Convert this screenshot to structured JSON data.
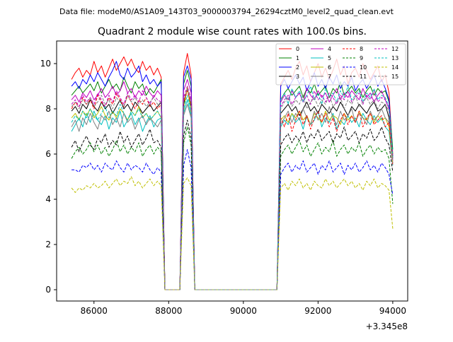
{
  "header": {
    "data_file": "Data file: modeM0/AS1A09_143T03_9000003794_26294cztM0_level2_quad_clean.evt"
  },
  "chart_data": {
    "type": "line",
    "title": "Quadrant 2 module wise count rates with 100.0s bins.",
    "xlabel": "",
    "ylabel": "",
    "x_offset_label": "+3.345e8",
    "xlim": [
      85000,
      94400
    ],
    "ylim": [
      -0.5,
      11.0
    ],
    "x_ticks": [
      86000,
      88000,
      90000,
      92000,
      94000
    ],
    "x_tick_labels": [
      "86000",
      "88000",
      "90000",
      "92000",
      "94000"
    ],
    "y_ticks": [
      0,
      2,
      4,
      6,
      8,
      10
    ],
    "y_tick_labels": [
      "0",
      "2",
      "4",
      "6",
      "8",
      "10"
    ],
    "grid": false,
    "legend_position": "top-right",
    "x_segments": {
      "seg1": [
        85400,
        85500,
        85600,
        85700,
        85800,
        85900,
        86000,
        86100,
        86200,
        86300,
        86400,
        86500,
        86600,
        86700,
        86800,
        86900,
        87000,
        87100,
        87200,
        87300,
        87400,
        87500,
        87600,
        87700,
        87800
      ],
      "gap1": [
        87900,
        88000,
        88100,
        88200,
        88300
      ],
      "seg2": [
        88400,
        88500,
        88600
      ],
      "gap2": [
        88700,
        88800,
        88900,
        89000,
        89100,
        89200,
        89300,
        89400,
        89500,
        89600,
        89700,
        89800,
        89900,
        90000,
        90100,
        90200,
        90300,
        90400,
        90500,
        90600,
        90700,
        90800,
        90900
      ],
      "seg3": [
        91000,
        91100,
        91200,
        91300,
        91400,
        91500,
        91600,
        91700,
        91800,
        91900,
        92000,
        92100,
        92200,
        92300,
        92400,
        92500,
        92600,
        92700,
        92800,
        92900,
        93000,
        93100,
        93200,
        93300,
        93400,
        93500,
        93600,
        93700,
        93800,
        93900,
        94000
      ]
    },
    "series": [
      {
        "name": "0",
        "color": "#ff0000",
        "dashed": false,
        "seg1": [
          9.3,
          9.6,
          9.8,
          9.4,
          9.7,
          9.5,
          10.1,
          9.6,
          9.9,
          9.4,
          9.8,
          10.2,
          9.7,
          10.0,
          10.3,
          9.9,
          10.2,
          9.8,
          9.6,
          10.1,
          9.7,
          9.9,
          9.5,
          9.8,
          9.4
        ],
        "seg2": [
          9.6,
          10.45,
          9.5
        ],
        "seg3": [
          9.1,
          9.4,
          9.7,
          9.3,
          9.8,
          10.1,
          9.5,
          9.9,
          9.2,
          9.6,
          10.0,
          9.4,
          9.8,
          9.3,
          9.7,
          10.2,
          9.5,
          9.9,
          9.1,
          9.6,
          9.8,
          9.4,
          10.0,
          9.7,
          9.3,
          9.6,
          9.9,
          9.2,
          9.5,
          8.7,
          6.0
        ]
      },
      {
        "name": "1",
        "color": "#008000",
        "dashed": false,
        "seg1": [
          8.6,
          8.8,
          9.0,
          8.7,
          8.9,
          9.1,
          8.8,
          9.2,
          8.7,
          9.0,
          9.3,
          8.9,
          9.1,
          8.8,
          9.4,
          9.0,
          8.7,
          9.2,
          8.9,
          9.1,
          8.6,
          8.9,
          8.7,
          9.0,
          9.3
        ],
        "seg2": [
          9.1,
          9.7,
          9.0
        ],
        "seg3": [
          8.4,
          8.7,
          8.9,
          8.6,
          8.8,
          9.0,
          8.5,
          8.9,
          8.7,
          9.1,
          8.6,
          8.8,
          9.0,
          8.5,
          8.9,
          8.7,
          9.2,
          8.6,
          8.8,
          9.0,
          8.7,
          8.9,
          8.5,
          8.8,
          9.0,
          8.6,
          8.9,
          8.7,
          8.8,
          8.3,
          6.2
        ]
      },
      {
        "name": "2",
        "color": "#0000ff",
        "dashed": false,
        "seg1": [
          9.0,
          9.2,
          8.9,
          9.3,
          9.1,
          9.5,
          9.2,
          9.6,
          9.3,
          9.0,
          9.4,
          9.7,
          10.1,
          9.5,
          9.3,
          9.8,
          9.4,
          9.6,
          9.9,
          9.2,
          9.5,
          9.1,
          9.3,
          9.0,
          9.2
        ],
        "seg2": [
          9.4,
          9.9,
          9.3
        ],
        "seg3": [
          9.0,
          9.3,
          8.9,
          9.2,
          9.5,
          9.1,
          9.4,
          8.8,
          9.2,
          9.6,
          9.0,
          9.3,
          8.9,
          9.4,
          9.1,
          9.5,
          8.9,
          9.2,
          9.0,
          9.4,
          8.8,
          9.1,
          9.3,
          8.9,
          9.2,
          9.5,
          9.0,
          9.3,
          8.9,
          8.4,
          5.8
        ]
      },
      {
        "name": "3",
        "color": "#000000",
        "dashed": false,
        "seg1": [
          7.9,
          8.1,
          7.8,
          8.2,
          8.0,
          8.4,
          8.1,
          7.9,
          8.3,
          8.0,
          8.2,
          7.8,
          8.1,
          8.4,
          8.0,
          8.2,
          7.9,
          8.3,
          8.1,
          7.8,
          8.0,
          8.2,
          7.9,
          8.1,
          8.3
        ],
        "seg2": [
          8.2,
          8.9,
          8.1
        ],
        "seg3": [
          7.8,
          8.0,
          8.2,
          7.9,
          8.1,
          7.7,
          8.0,
          8.3,
          7.9,
          8.1,
          7.8,
          8.2,
          8.0,
          7.8,
          8.1,
          7.9,
          8.3,
          8.0,
          7.7,
          8.1,
          7.9,
          8.2,
          8.0,
          7.8,
          8.1,
          8.3,
          7.9,
          8.0,
          8.2,
          7.6,
          5.9
        ]
      },
      {
        "name": "4",
        "color": "#bf00bf",
        "dashed": false,
        "seg1": [
          8.4,
          8.6,
          8.3,
          8.7,
          8.5,
          8.8,
          8.4,
          8.6,
          8.9,
          8.5,
          8.7,
          9.0,
          8.6,
          8.8,
          9.2,
          8.7,
          8.9,
          8.5,
          8.8,
          8.6,
          9.0,
          8.7,
          8.5,
          8.8,
          8.6
        ],
        "seg2": [
          8.8,
          9.3,
          8.7
        ],
        "seg3": [
          8.3,
          8.6,
          8.4,
          8.8,
          8.5,
          8.7,
          8.3,
          8.9,
          8.6,
          8.4,
          8.8,
          8.5,
          8.7,
          8.3,
          8.6,
          8.9,
          8.4,
          8.7,
          8.5,
          8.8,
          8.6,
          8.4,
          8.9,
          8.5,
          8.7,
          8.3,
          8.6,
          8.8,
          8.4,
          8.0,
          5.7
        ]
      },
      {
        "name": "5",
        "color": "#00bfbf",
        "dashed": false,
        "seg1": [
          7.0,
          7.3,
          7.6,
          7.2,
          7.8,
          7.4,
          7.9,
          7.5,
          7.3,
          7.7,
          7.1,
          7.6,
          7.4,
          7.9,
          7.2,
          7.5,
          7.8,
          7.3,
          7.6,
          7.0,
          7.4,
          7.7,
          7.2,
          7.5,
          7.6
        ],
        "seg2": [
          7.8,
          8.4,
          7.7
        ],
        "seg3": [
          7.2,
          7.5,
          7.3,
          7.8,
          7.4,
          7.6,
          7.1,
          7.7,
          7.3,
          7.5,
          7.9,
          7.2,
          7.6,
          7.4,
          7.8,
          7.1,
          7.5,
          7.3,
          7.7,
          7.4,
          7.6,
          7.2,
          7.8,
          7.5,
          7.3,
          7.7,
          7.4,
          7.6,
          7.2,
          7.0,
          5.5
        ]
      },
      {
        "name": "6",
        "color": "#bfbf00",
        "dashed": false,
        "seg1": [
          7.6,
          7.8,
          7.5,
          7.9,
          7.7,
          8.0,
          7.6,
          7.8,
          8.1,
          7.7,
          7.5,
          7.9,
          7.6,
          8.0,
          7.8,
          7.5,
          7.9,
          7.7,
          8.1,
          7.6,
          7.8,
          7.5,
          7.7,
          7.9,
          7.6
        ],
        "seg2": [
          7.9,
          9.0,
          7.8
        ],
        "seg3": [
          7.5,
          7.7,
          7.4,
          7.8,
          7.6,
          7.9,
          7.5,
          7.7,
          7.3,
          7.8,
          7.6,
          7.4,
          7.9,
          7.5,
          7.7,
          7.6,
          7.3,
          7.8,
          7.5,
          7.7,
          7.4,
          7.9,
          7.6,
          7.5,
          7.8,
          7.4,
          7.7,
          7.5,
          7.6,
          7.2,
          5.6
        ]
      },
      {
        "name": "7",
        "color": "#808080",
        "dashed": false,
        "seg1": [
          7.2,
          7.5,
          7.0,
          7.6,
          7.3,
          7.8,
          7.4,
          7.1,
          7.7,
          7.5,
          7.9,
          7.3,
          7.6,
          7.2,
          7.8,
          7.4,
          7.6,
          7.1,
          7.5,
          7.7,
          7.3,
          7.6,
          7.4,
          7.2,
          7.5
        ],
        "seg2": [
          7.7,
          8.2,
          7.6
        ],
        "seg3": [
          7.3,
          7.6,
          7.9,
          7.4,
          7.8,
          7.5,
          8.0,
          7.6,
          7.3,
          7.9,
          7.5,
          7.8,
          7.4,
          8.1,
          7.6,
          7.3,
          7.9,
          7.5,
          7.7,
          8.0,
          7.4,
          7.8,
          7.6,
          7.3,
          7.9,
          7.5,
          7.7,
          8.0,
          7.6,
          7.4,
          5.8
        ]
      },
      {
        "name": "8",
        "color": "#ff0000",
        "dashed": true,
        "seg1": [
          8.0,
          8.3,
          8.1,
          8.5,
          8.2,
          8.4,
          8.0,
          8.6,
          8.3,
          8.1,
          8.5,
          8.2,
          8.7,
          8.4,
          8.1,
          8.6,
          8.3,
          8.0,
          8.4,
          8.2,
          8.5,
          8.1,
          8.3,
          8.0,
          8.2
        ],
        "seg2": [
          8.3,
          8.8,
          8.2
        ],
        "seg3": [
          7.6,
          7.2,
          7.8,
          7.0,
          7.5,
          7.9,
          7.3,
          7.7,
          7.1,
          7.6,
          7.9,
          7.4,
          7.8,
          7.2,
          7.6,
          7.0,
          7.5,
          7.8,
          7.3,
          7.7,
          7.4,
          7.9,
          7.2,
          7.6,
          7.8,
          7.3,
          7.5,
          7.7,
          7.2,
          7.4,
          5.5
        ]
      },
      {
        "name": "9",
        "color": "#008000",
        "dashed": true,
        "seg1": [
          5.8,
          6.1,
          6.3,
          6.0,
          6.2,
          6.5,
          6.1,
          6.4,
          6.0,
          6.3,
          5.9,
          6.2,
          6.6,
          6.1,
          6.4,
          6.0,
          6.3,
          6.1,
          6.5,
          5.9,
          6.2,
          6.4,
          6.0,
          6.3,
          6.1
        ],
        "seg2": [
          6.5,
          7.2,
          6.4
        ],
        "seg3": [
          5.9,
          6.2,
          6.4,
          6.0,
          6.3,
          6.6,
          6.1,
          6.4,
          5.9,
          6.2,
          6.5,
          6.0,
          6.3,
          6.1,
          6.6,
          5.9,
          6.2,
          6.4,
          6.0,
          6.3,
          6.1,
          6.5,
          5.9,
          6.2,
          6.4,
          6.0,
          6.3,
          6.1,
          6.2,
          5.8,
          3.8
        ]
      },
      {
        "name": "10",
        "color": "#0000ff",
        "dashed": true,
        "seg1": [
          5.3,
          5.3,
          5.2,
          5.5,
          5.4,
          5.6,
          5.3,
          5.5,
          5.2,
          5.6,
          5.4,
          5.3,
          5.7,
          5.4,
          5.2,
          5.6,
          5.3,
          5.5,
          5.4,
          5.2,
          5.6,
          5.3,
          5.1,
          5.4,
          5.2
        ],
        "seg2": [
          5.5,
          6.2,
          5.4
        ],
        "seg3": [
          5.1,
          5.4,
          5.6,
          5.2,
          5.5,
          5.3,
          5.7,
          5.2,
          5.4,
          5.6,
          5.1,
          5.5,
          5.3,
          5.7,
          5.2,
          5.4,
          5.6,
          5.1,
          5.5,
          5.3,
          5.6,
          5.2,
          5.4,
          5.7,
          5.3,
          5.5,
          5.2,
          5.6,
          5.4,
          5.1,
          4.2
        ]
      },
      {
        "name": "11",
        "color": "#000000",
        "dashed": true,
        "seg1": [
          6.3,
          6.6,
          6.1,
          6.5,
          6.8,
          6.4,
          6.2,
          6.7,
          6.5,
          6.9,
          6.3,
          6.6,
          6.4,
          7.0,
          6.5,
          6.8,
          6.3,
          6.6,
          6.9,
          6.4,
          6.7,
          7.1,
          6.5,
          6.6,
          6.3
        ],
        "seg2": [
          6.8,
          7.5,
          6.7
        ],
        "seg3": [
          6.4,
          6.7,
          6.9,
          6.5,
          6.8,
          6.6,
          7.0,
          6.5,
          6.9,
          6.7,
          7.1,
          6.6,
          6.8,
          7.0,
          6.5,
          6.9,
          6.7,
          7.2,
          6.6,
          6.8,
          7.0,
          6.5,
          6.9,
          6.7,
          7.1,
          6.6,
          6.8,
          7.2,
          6.7,
          6.4,
          5.2
        ]
      },
      {
        "name": "12",
        "color": "#bf00bf",
        "dashed": true,
        "seg1": [
          8.2,
          8.4,
          8.1,
          8.6,
          8.3,
          8.5,
          8.2,
          8.7,
          8.4,
          8.1,
          8.6,
          8.3,
          8.8,
          8.5,
          8.2,
          8.7,
          8.4,
          8.6,
          8.3,
          8.8,
          8.5,
          8.2,
          8.6,
          8.4,
          8.3
        ],
        "seg2": [
          8.5,
          9.0,
          8.4
        ],
        "seg3": [
          8.1,
          8.4,
          8.6,
          8.2,
          8.5,
          8.7,
          8.3,
          8.6,
          8.2,
          8.8,
          8.4,
          8.6,
          8.3,
          8.7,
          8.5,
          8.2,
          8.6,
          8.4,
          8.8,
          8.3,
          8.5,
          8.7,
          8.2,
          8.6,
          8.4,
          8.8,
          8.3,
          8.5,
          8.4,
          8.0,
          5.9
        ]
      },
      {
        "name": "13",
        "color": "#00bfbf",
        "dashed": true,
        "seg1": [
          7.4,
          7.7,
          7.5,
          7.9,
          7.6,
          8.0,
          7.7,
          7.5,
          7.8,
          8.1,
          7.6,
          7.9,
          7.7,
          8.2,
          7.8,
          7.5,
          7.9,
          7.7,
          8.0,
          7.6,
          7.8,
          7.5,
          7.7,
          7.9,
          7.6
        ],
        "seg2": [
          8.0,
          8.6,
          7.9
        ],
        "seg3": [
          8.4,
          8.7,
          8.2,
          8.9,
          8.5,
          8.8,
          8.3,
          8.6,
          9.0,
          8.4,
          8.7,
          8.2,
          8.9,
          8.5,
          8.7,
          8.3,
          8.8,
          8.5,
          9.0,
          8.4,
          8.6,
          8.8,
          8.3,
          8.7,
          8.5,
          8.9,
          8.4,
          8.6,
          8.5,
          8.1,
          5.9
        ]
      },
      {
        "name": "14",
        "color": "#bfbf00",
        "dashed": true,
        "seg1": [
          4.5,
          4.3,
          4.5,
          4.4,
          4.6,
          4.5,
          4.7,
          4.5,
          4.6,
          4.8,
          4.5,
          4.7,
          4.9,
          4.6,
          4.8,
          4.7,
          5.0,
          4.6,
          4.8,
          4.5,
          4.7,
          4.9,
          4.6,
          4.8,
          4.6
        ],
        "seg2": [
          4.7,
          4.95,
          4.6
        ],
        "seg3": [
          4.5,
          4.7,
          4.4,
          4.8,
          4.6,
          4.9,
          4.5,
          4.7,
          4.4,
          4.8,
          4.6,
          4.5,
          4.9,
          4.6,
          4.8,
          4.5,
          4.7,
          4.9,
          4.6,
          4.8,
          4.5,
          4.7,
          4.4,
          4.8,
          4.6,
          4.9,
          4.5,
          4.7,
          4.6,
          4.4,
          2.7
        ]
      },
      {
        "name": "15",
        "color": "#808080",
        "dashed": true,
        "seg1": [
          8.1,
          8.3,
          8.0,
          8.4,
          8.2,
          8.5,
          8.1,
          8.3,
          8.6,
          8.2,
          8.4,
          8.0,
          8.5,
          8.3,
          8.1,
          8.6,
          8.3,
          8.5,
          8.2,
          8.4,
          8.1,
          8.3,
          8.5,
          8.2,
          8.3
        ],
        "seg2": [
          8.4,
          8.9,
          8.3
        ],
        "seg3": [
          8.0,
          8.3,
          8.5,
          8.1,
          8.4,
          8.2,
          8.6,
          8.0,
          8.3,
          8.5,
          8.1,
          8.4,
          8.2,
          8.6,
          8.1,
          8.3,
          8.5,
          8.0,
          8.4,
          8.2,
          8.6,
          8.1,
          8.3,
          8.5,
          8.2,
          8.4,
          8.0,
          8.3,
          8.2,
          7.9,
          5.6
        ]
      }
    ]
  }
}
